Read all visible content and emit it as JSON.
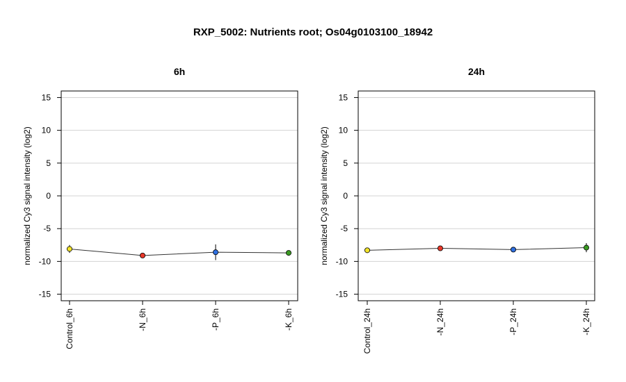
{
  "title": "RXP_5002: Nutrients root; Os04g0103100_18942",
  "chart_data": [
    {
      "type": "line",
      "title": "6h",
      "ylabel": "normalized Cy3 signal intensity (log2)",
      "ylim": [
        -16,
        16
      ],
      "yticks": [
        -15,
        -10,
        -5,
        0,
        5,
        10,
        15
      ],
      "grid": true,
      "categories": [
        "Control_6h",
        "-N_6h",
        "-P_6h",
        "-K_6h"
      ],
      "values": [
        -8.1,
        -9.1,
        -8.6,
        -8.7
      ],
      "errors": [
        0.6,
        0.2,
        1.2,
        0.2
      ],
      "colors": [
        "#f2e32a",
        "#e8382a",
        "#2f6fe0",
        "#3a9a22"
      ]
    },
    {
      "type": "line",
      "title": "24h",
      "ylabel": "normalized Cy3 signal intensity (log2)",
      "ylim": [
        -16,
        16
      ],
      "yticks": [
        -15,
        -10,
        -5,
        0,
        5,
        10,
        15
      ],
      "grid": true,
      "categories": [
        "Control_24h",
        "-N_24h",
        "-P_24h",
        "-K_24h"
      ],
      "values": [
        -8.3,
        -8.0,
        -8.2,
        -7.9
      ],
      "errors": [
        0.3,
        0.2,
        0.3,
        0.7
      ],
      "colors": [
        "#f2e32a",
        "#e8382a",
        "#2f6fe0",
        "#3a9a22"
      ]
    }
  ]
}
